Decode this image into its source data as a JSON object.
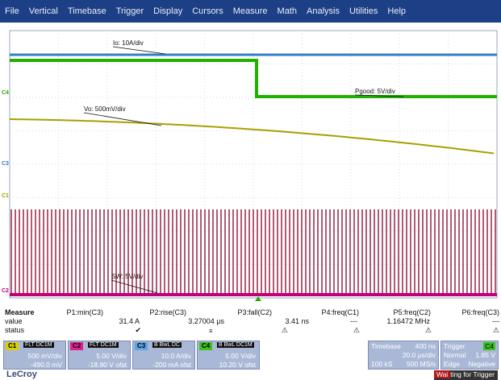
{
  "menu": [
    "File",
    "Vertical",
    "Timebase",
    "Trigger",
    "Display",
    "Cursors",
    "Measure",
    "Math",
    "Analysis",
    "Utilities",
    "Help"
  ],
  "traces": {
    "io_label": "Io: 10A/div",
    "pgood_label": "Pgood: 5V/div",
    "vo_label": "Vo: 500mV/div",
    "sw_label": "SW: 5V/div"
  },
  "channel_markers": {
    "c4": "C4",
    "c3": "C3",
    "c1": "C1",
    "c2": "C2"
  },
  "colors": {
    "c1": "#a8a000",
    "c2": "#c0007a",
    "c3": "#2f7fc4",
    "c4": "#22b000",
    "sw": "#a0304f"
  },
  "measure": {
    "header": "Measure",
    "row_labels": [
      "value",
      "status"
    ],
    "params": [
      {
        "name": "P1:min(C3)",
        "value": "31.4 A",
        "status": "✔"
      },
      {
        "name": "P2:rise(C3)",
        "value": "3.27004 µs",
        "status": "⌅"
      },
      {
        "name": "P3:fall(C2)",
        "value": "3.41 ns",
        "status": "⚠"
      },
      {
        "name": "P4:freq(C1)",
        "value": "---",
        "status": "⚠"
      },
      {
        "name": "P5:freq(C2)",
        "value": "1.16472 MHz",
        "status": "⚠"
      },
      {
        "name": "P6:freq(C3)",
        "value": "---",
        "status": "⚠"
      }
    ]
  },
  "channels": [
    {
      "tag": "C1",
      "flags": "FLT DC1M",
      "scale": "500 mV/div",
      "offset": "-490.0 mV"
    },
    {
      "tag": "C2",
      "flags": "FLT DC1M",
      "scale": "5.00 V/div",
      "offset": "-18.90 V ofst"
    },
    {
      "tag": "C3",
      "flags": "B BwL DC",
      "scale": "10.0 A/div",
      "offset": "-200 mA ofst"
    },
    {
      "tag": "C4",
      "flags": "B BwL DC1M",
      "scale": "5.00 V/div",
      "offset": "10.20 V ofst"
    }
  ],
  "timebase": {
    "label": "Timebase",
    "delay": "400 ns",
    "div": "20.0 µs/div",
    "samples": "100 kS",
    "rate": "500 MS/s"
  },
  "trigger": {
    "label": "Trigger",
    "source": "C4",
    "mode": "Normal",
    "level": "1.85 V",
    "type": "Edge",
    "slope": "Negative"
  },
  "brand": "LeCroy",
  "status": {
    "highlight": "Wai",
    "rest": "ting for Trigger"
  }
}
